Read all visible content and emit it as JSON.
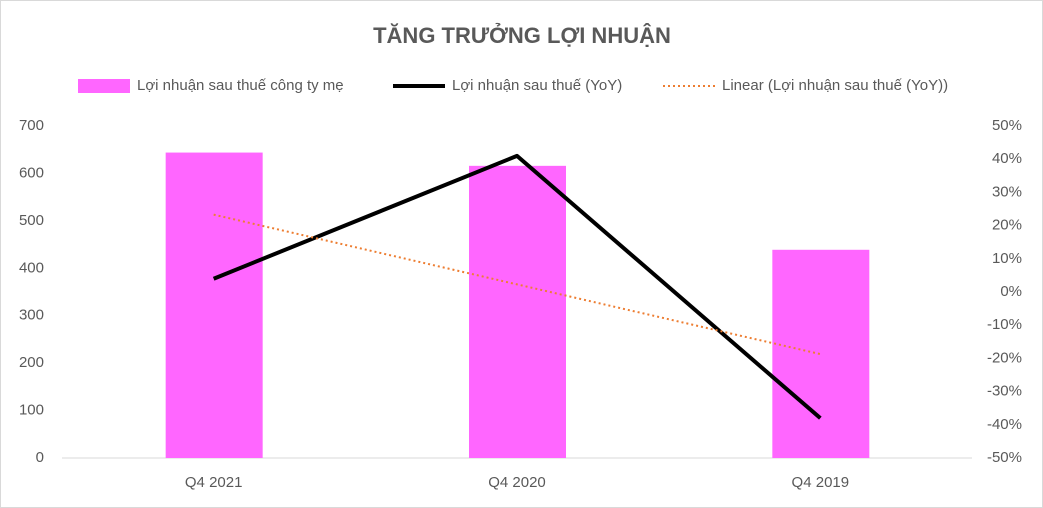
{
  "chart_data": {
    "type": "bar",
    "title": "TĂNG TRƯỞNG LỢI NHUẬN",
    "categories": [
      "Q4 2021",
      "Q4 2020",
      "Q4 2019"
    ],
    "series": [
      {
        "name": "Lợi nhuận sau thuế công ty mẹ",
        "type": "bar",
        "color": "#ff66ff",
        "values": [
          644,
          616,
          439
        ]
      },
      {
        "name": "Lợi nhuận sau thuế (YoY)",
        "type": "line",
        "color": "#000000",
        "axis": "y2",
        "values": [
          4,
          41,
          -38
        ]
      },
      {
        "name": "Linear (Lợi nhuận sau thuế (YoY))",
        "type": "line",
        "line_style": "dotted",
        "color": "#ed7d31",
        "axis": "y2",
        "values": [
          23.3,
          2.3,
          -18.7
        ]
      }
    ],
    "ylim": [
      0,
      700
    ],
    "yticks": [
      0,
      100,
      200,
      300,
      400,
      500,
      600,
      700
    ],
    "y2lim": [
      -50,
      50
    ],
    "y2ticks": [
      {
        "value": -50,
        "label": "-50%"
      },
      {
        "value": -40,
        "label": "-40%"
      },
      {
        "value": -30,
        "label": "-30%"
      },
      {
        "value": -20,
        "label": "-20%"
      },
      {
        "value": -10,
        "label": "-10%"
      },
      {
        "value": 0,
        "label": "0%"
      },
      {
        "value": 10,
        "label": "10%"
      },
      {
        "value": 20,
        "label": "20%"
      },
      {
        "value": 30,
        "label": "30%"
      },
      {
        "value": 40,
        "label": "40%"
      },
      {
        "value": 50,
        "label": "50%"
      }
    ],
    "legend": "top",
    "grid": false
  }
}
